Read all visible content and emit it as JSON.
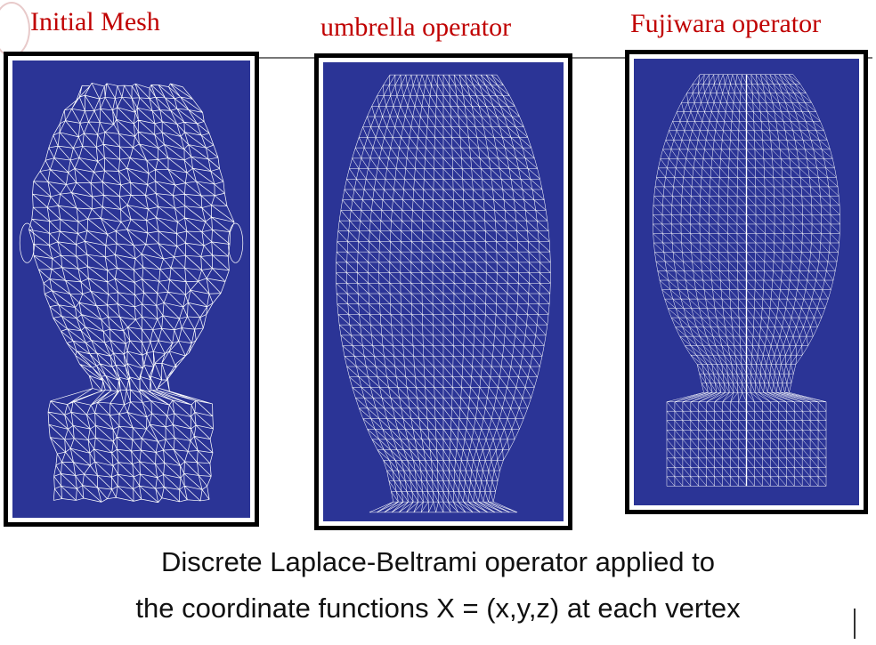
{
  "captions": [
    "Initial Mesh",
    "umbrella operator",
    "Fujiwara operator"
  ],
  "description": {
    "line1": "Discrete Laplace-Beltrami operator applied to",
    "line2": "the coordinate functions X = (x,y,z) at each vertex"
  },
  "colors": {
    "caption": "#c00000",
    "panel_bg": "#2b3496",
    "mesh": "#ffffff"
  },
  "icons": [
    "university-seal-icon",
    "wireframe-head-mesh",
    "wireframe-head-mesh",
    "wireframe-head-mesh"
  ]
}
